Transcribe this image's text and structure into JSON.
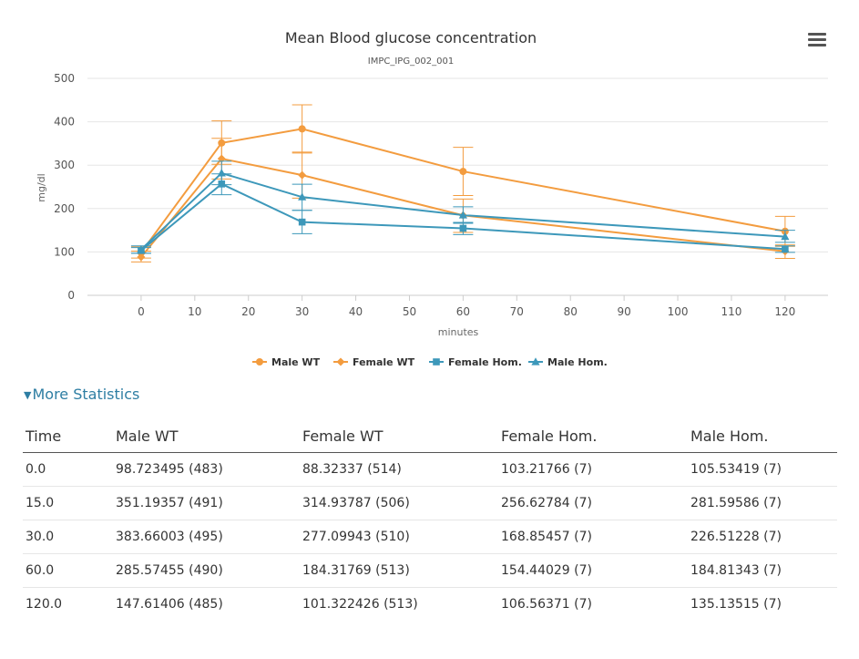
{
  "chart_data": {
    "type": "line",
    "title": "Mean Blood glucose concentration",
    "subtitle": "IMPC_IPG_002_001",
    "xlabel": "minutes",
    "ylabel": "mg/dl",
    "xlim": [
      -10,
      128
    ],
    "ylim": [
      0,
      500
    ],
    "x_ticks": [
      0,
      10,
      20,
      30,
      40,
      50,
      60,
      70,
      80,
      90,
      100,
      110,
      120
    ],
    "y_ticks": [
      0,
      100,
      200,
      300,
      400,
      500
    ],
    "grid": "horizontal",
    "legend_position": "bottom",
    "x": [
      0,
      15,
      30,
      60,
      120
    ],
    "series": [
      {
        "name": "Male WT",
        "color": "#f39c3f",
        "marker": "circle",
        "values": [
          98.72,
          351.19,
          383.66,
          285.57,
          147.61
        ],
        "error_low": [
          86,
          302,
          328,
          230,
          113
        ],
        "error_high": [
          112,
          402,
          439,
          341,
          182
        ]
      },
      {
        "name": "Female WT",
        "color": "#f39c3f",
        "marker": "diamond",
        "values": [
          88.32,
          314.94,
          277.1,
          184.32,
          101.32
        ],
        "error_low": [
          77,
          268,
          224,
          145,
          85
        ],
        "error_high": [
          102,
          362,
          330,
          222,
          116
        ]
      },
      {
        "name": "Female Hom.",
        "color": "#3d98ba",
        "marker": "square",
        "values": [
          103.22,
          256.63,
          168.85,
          154.44,
          106.56
        ],
        "error_low": [
          97,
          232,
          142,
          140,
          99
        ],
        "error_high": [
          110,
          280,
          196,
          168,
          114
        ]
      },
      {
        "name": "Male Hom.",
        "color": "#3d98ba",
        "marker": "triangle",
        "values": [
          105.53,
          281.6,
          226.51,
          184.81,
          135.14
        ],
        "error_low": [
          97,
          255,
          196,
          166,
          122
        ],
        "error_high": [
          114,
          309,
          256,
          204,
          150
        ]
      }
    ]
  },
  "menu": {
    "icon": "hamburger-menu-icon"
  },
  "more_statistics": {
    "label": "More Statistics",
    "icon": "caret-down-icon"
  },
  "table": {
    "headers": [
      "Time",
      "Male WT",
      "Female WT",
      "Female Hom.",
      "Male Hom."
    ],
    "rows": [
      [
        "0.0",
        "98.723495 (483)",
        "88.32337 (514)",
        "103.21766 (7)",
        "105.53419 (7)"
      ],
      [
        "15.0",
        "351.19357 (491)",
        "314.93787 (506)",
        "256.62784 (7)",
        "281.59586 (7)"
      ],
      [
        "30.0",
        "383.66003 (495)",
        "277.09943 (510)",
        "168.85457 (7)",
        "226.51228 (7)"
      ],
      [
        "60.0",
        "285.57455 (490)",
        "184.31769 (513)",
        "154.44029 (7)",
        "184.81343 (7)"
      ],
      [
        "120.0",
        "147.61406 (485)",
        "101.322426 (513)",
        "106.56371 (7)",
        "135.13515 (7)"
      ]
    ]
  }
}
